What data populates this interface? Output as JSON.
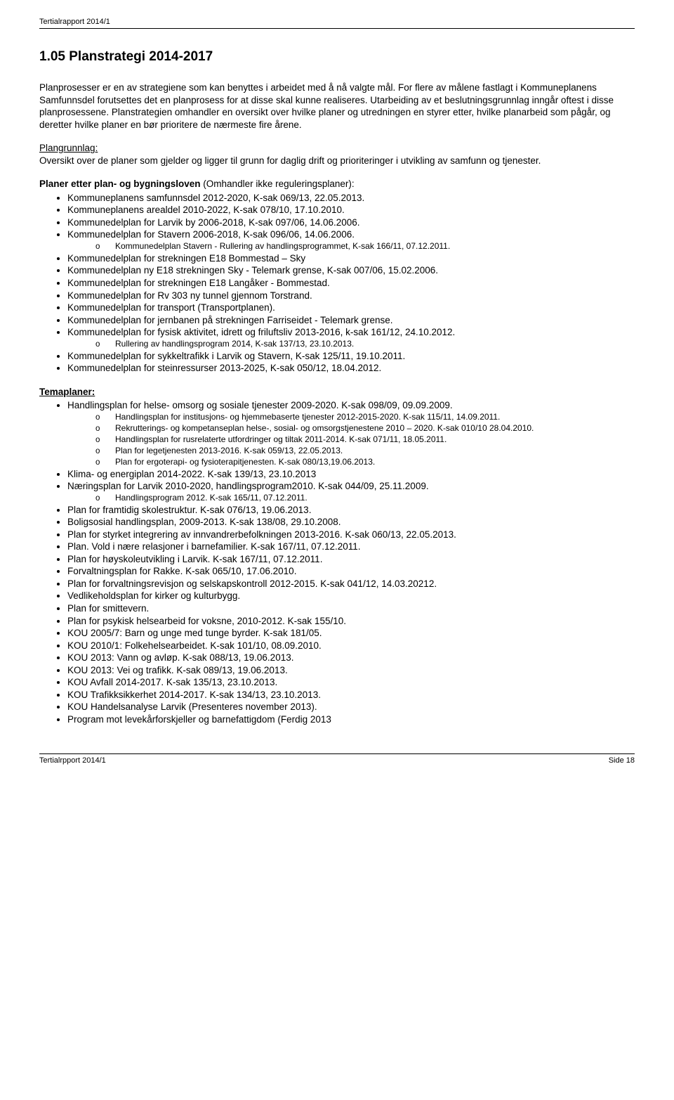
{
  "header": {
    "title": "Tertialrapport 2014/1"
  },
  "footer": {
    "left": "Tertialrpport 2014/1",
    "right": "Side 18"
  },
  "section": {
    "heading": "1.05  Planstrategi 2014-2017",
    "intro": "Planprosesser er en av strategiene som kan benyttes i arbeidet med å nå valgte mål. For flere av målene fastlagt i Kommuneplanens Samfunnsdel forutsettes det en planprosess for at disse skal kunne realiseres. Utarbeiding av et beslutningsgrunnlag inngår oftest i disse planprosessene. Planstrategien omhandler en oversikt over hvilke planer og utredningen en styrer etter, hvilke planarbeid som pågår, og deretter hvilke planer en bør prioritere de nærmeste fire årene.",
    "plangrunnlag_label": "Plangrunnlag:",
    "plangrunnlag_text": "Oversikt over de planer som gjelder og ligger til grunn for daglig drift og prioriteringer i utvikling av samfunn og tjenester.",
    "planer_intro_bold": "Planer etter plan- og bygningsloven",
    "planer_intro_rest": " (Omhandler ikke reguleringsplaner):",
    "planer_items": [
      {
        "text": "Kommuneplanens samfunnsdel 2012-2020, K-sak 069/13, 22.05.2013."
      },
      {
        "text": "Kommuneplanens arealdel 2010-2022, K-sak 078/10, 17.10.2010."
      },
      {
        "text": "Kommunedelplan for Larvik by 2006-2018, K-sak 097/06, 14.06.2006."
      },
      {
        "text": "Kommunedelplan for Stavern 2006-2018, K-sak 096/06, 14.06.2006.",
        "sub": [
          "Kommunedelplan Stavern - Rullering av handlingsprogrammet, K-sak 166/11, 07.12.2011."
        ]
      },
      {
        "text": "Kommunedelplan for strekningen E18 Bommestad – Sky"
      },
      {
        "text": "Kommunedelplan ny E18 strekningen Sky - Telemark grense, K-sak 007/06, 15.02.2006."
      },
      {
        "text": "Kommunedelplan for strekningen E18 Langåker - Bommestad."
      },
      {
        "text": "Kommunedelplan for Rv 303 ny tunnel gjennom Torstrand."
      },
      {
        "text": "Kommunedelplan for transport (Transportplanen)."
      },
      {
        "text": "Kommunedelplan for jernbanen på strekningen Farriseidet - Telemark grense."
      },
      {
        "text": "Kommunedelplan for fysisk aktivitet, idrett og friluftsliv 2013-2016, k-sak 161/12, 24.10.2012.",
        "sub": [
          "Rullering av handlingsprogram 2014, K-sak 137/13, 23.10.2013."
        ]
      },
      {
        "text": "Kommunedelplan for sykkeltrafikk i Larvik og Stavern, K-sak 125/11, 19.10.2011."
      },
      {
        "text": "Kommunedelplan for steinressurser 2013-2025, K-sak 050/12, 18.04.2012."
      }
    ],
    "temaplaner_label": "Temaplaner:",
    "temaplaner_items": [
      {
        "text": "Handlingsplan for helse- omsorg og sosiale tjenester 2009-2020. K-sak 098/09, 09.09.2009.",
        "sub": [
          "Handlingsplan for institusjons- og hjemmebaserte tjenester 2012-2015-2020. K-sak 115/11, 14.09.2011.",
          "Rekrutterings- og kompetanseplan helse-, sosial- og omsorgstjenestene 2010 – 2020. K-sak 010/10 28.04.2010.",
          "Handlingsplan for rusrelaterte utfordringer og tiltak 2011-2014. K-sak 071/11, 18.05.2011.",
          "Plan for legetjenesten 2013-2016. K-sak 059/13, 22.05.2013.",
          "Plan for ergoterapi- og fysioterapitjenesten. K-sak 080/13,19.06.2013."
        ]
      },
      {
        "text": "Klima- og energiplan 2014-2022. K-sak 139/13, 23.10.2013"
      },
      {
        "text": "Næringsplan for Larvik 2010-2020, handlingsprogram2010. K-sak 044/09, 25.11.2009.",
        "sub": [
          "Handlingsprogram 2012. K-sak 165/11, 07.12.2011."
        ]
      },
      {
        "text": "Plan for framtidig skolestruktur. K-sak 076/13, 19.06.2013."
      },
      {
        "text": "Boligsosial handlingsplan, 2009-2013. K-sak 138/08, 29.10.2008."
      },
      {
        "text": "Plan for styrket integrering av innvandrerbefolkningen 2013-2016. K-sak 060/13, 22.05.2013."
      },
      {
        "text": "Plan. Vold i nære relasjoner i barnefamilier. K-sak 167/11, 07.12.2011."
      },
      {
        "text": "Plan for høyskoleutvikling i Larvik. K-sak 167/11, 07.12.2011."
      },
      {
        "text": "Forvaltningsplan for Rakke. K-sak 065/10, 17.06.2010."
      },
      {
        "text": "Plan for forvaltningsrevisjon og selskapskontroll 2012-2015. K-sak 041/12, 14.03.20212."
      },
      {
        "text": "Vedlikeholdsplan for kirker og kulturbygg."
      },
      {
        "text": "Plan for smittevern."
      },
      {
        "text": "Plan for psykisk helsearbeid for voksne, 2010-2012. K-sak 155/10."
      },
      {
        "text": "KOU 2005/7: Barn og unge med tunge byrder. K-sak 181/05."
      },
      {
        "text": "KOU 2010/1: Folkehelsearbeidet. K-sak 101/10, 08.09.2010."
      },
      {
        "text": "KOU 2013: Vann og avløp. K-sak 088/13, 19.06.2013."
      },
      {
        "text": "KOU 2013: Vei og trafikk. K-sak 089/13, 19.06.2013."
      },
      {
        "text": "KOU Avfall 2014-2017. K-sak 135/13, 23.10.2013."
      },
      {
        "text": "KOU Trafikksikkerhet 2014-2017. K-sak 134/13, 23.10.2013."
      },
      {
        "text": "KOU Handelsanalyse Larvik (Presenteres november 2013)."
      },
      {
        "text": "Program mot levekårforskjeller og barnefattigdom (Ferdig 2013"
      }
    ]
  }
}
